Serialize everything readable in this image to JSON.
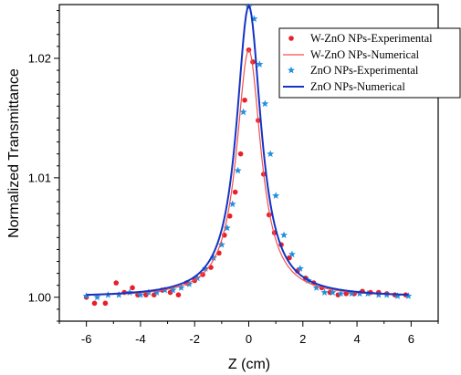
{
  "chart_data": {
    "type": "scatter",
    "xlabel": "Z (cm)",
    "ylabel": "Normalized Transmittance",
    "xlim": [
      -7,
      7
    ],
    "ylim": [
      0.998,
      1.0245
    ],
    "x_ticks": [
      -6,
      -4,
      -2,
      0,
      2,
      4,
      6
    ],
    "x_tick_labels": [
      "-6",
      "-4",
      "-2",
      "0",
      "2",
      "4",
      "6"
    ],
    "y_ticks": [
      1.0,
      1.01,
      1.02
    ],
    "y_tick_labels": [
      "1.00",
      "1.01",
      "1.02"
    ],
    "legend_position": "top-right",
    "series": [
      {
        "name": "W-ZnO NPs-Experimental",
        "kind": "markers",
        "marker": "circle",
        "color": "#e8202a",
        "points": [
          [
            -6.0,
            1.0
          ],
          [
            -5.7,
            0.9995
          ],
          [
            -5.3,
            0.9995
          ],
          [
            -4.9,
            1.0012
          ],
          [
            -4.6,
            1.0004
          ],
          [
            -4.3,
            1.0008
          ],
          [
            -4.1,
            1.0002
          ],
          [
            -3.8,
            1.0002
          ],
          [
            -3.5,
            1.0002
          ],
          [
            -3.2,
            1.0006
          ],
          [
            -2.9,
            1.0004
          ],
          [
            -2.6,
            1.0002
          ],
          [
            -2.3,
            1.0012
          ],
          [
            -2.0,
            1.0014
          ],
          [
            -1.7,
            1.0019
          ],
          [
            -1.4,
            1.0025
          ],
          [
            -1.1,
            1.0037
          ],
          [
            -0.9,
            1.0052
          ],
          [
            -0.7,
            1.0068
          ],
          [
            -0.5,
            1.0088
          ],
          [
            -0.3,
            1.012
          ],
          [
            -0.15,
            1.0165
          ],
          [
            0.0,
            1.0207
          ],
          [
            0.15,
            1.0197
          ],
          [
            0.35,
            1.0148
          ],
          [
            0.55,
            1.0103
          ],
          [
            0.75,
            1.0069
          ],
          [
            0.95,
            1.0054
          ],
          [
            1.2,
            1.0044
          ],
          [
            1.5,
            1.0033
          ],
          [
            1.8,
            1.0022
          ],
          [
            2.1,
            1.0016
          ],
          [
            2.4,
            1.0012
          ],
          [
            2.7,
            1.0008
          ],
          [
            3.0,
            1.0004
          ],
          [
            3.3,
            1.0002
          ],
          [
            3.6,
            1.0003
          ],
          [
            3.9,
            1.0003
          ],
          [
            4.2,
            1.0005
          ],
          [
            4.5,
            1.0004
          ],
          [
            4.8,
            1.0004
          ],
          [
            5.1,
            1.0003
          ],
          [
            5.4,
            1.0002
          ],
          [
            5.8,
            1.0002
          ]
        ]
      },
      {
        "name": "W-ZnO NPs-Numerical",
        "kind": "line",
        "color": "#f0524f",
        "peak": 0.0207,
        "width": 0.55
      },
      {
        "name": "ZnO NPs-Experimental",
        "kind": "markers",
        "marker": "star",
        "color": "#1f8fe0",
        "points": [
          [
            -6.0,
            1.0001
          ],
          [
            -5.6,
            1.0
          ],
          [
            -5.2,
            1.0002
          ],
          [
            -4.8,
            1.0002
          ],
          [
            -4.4,
            1.0004
          ],
          [
            -4.0,
            1.0002
          ],
          [
            -3.7,
            1.0004
          ],
          [
            -3.4,
            1.0004
          ],
          [
            -3.1,
            1.0006
          ],
          [
            -2.8,
            1.0006
          ],
          [
            -2.5,
            1.0008
          ],
          [
            -2.2,
            1.0011
          ],
          [
            -1.9,
            1.0016
          ],
          [
            -1.6,
            1.0024
          ],
          [
            -1.3,
            1.0033
          ],
          [
            -1.0,
            1.0044
          ],
          [
            -0.8,
            1.0058
          ],
          [
            -0.6,
            1.0078
          ],
          [
            -0.4,
            1.0106
          ],
          [
            -0.2,
            1.0155
          ],
          [
            0.0,
            1.0243
          ],
          [
            0.2,
            1.0233
          ],
          [
            0.4,
            1.0195
          ],
          [
            0.6,
            1.0162
          ],
          [
            0.8,
            1.012
          ],
          [
            1.0,
            1.0085
          ],
          [
            1.3,
            1.0052
          ],
          [
            1.6,
            1.0036
          ],
          [
            1.9,
            1.0024
          ],
          [
            2.2,
            1.0014
          ],
          [
            2.5,
            1.0008
          ],
          [
            2.8,
            1.0004
          ],
          [
            3.1,
            1.0004
          ],
          [
            3.4,
            1.0003
          ],
          [
            3.8,
            1.0003
          ],
          [
            4.1,
            1.0003
          ],
          [
            4.4,
            1.0003
          ],
          [
            4.8,
            1.0002
          ],
          [
            5.1,
            1.0002
          ],
          [
            5.5,
            1.0001
          ],
          [
            5.9,
            1.0001
          ]
        ]
      },
      {
        "name": "ZnO NPs-Numerical",
        "kind": "line",
        "color": "#1533c4",
        "peak": 0.0244,
        "width": 0.55
      }
    ]
  }
}
